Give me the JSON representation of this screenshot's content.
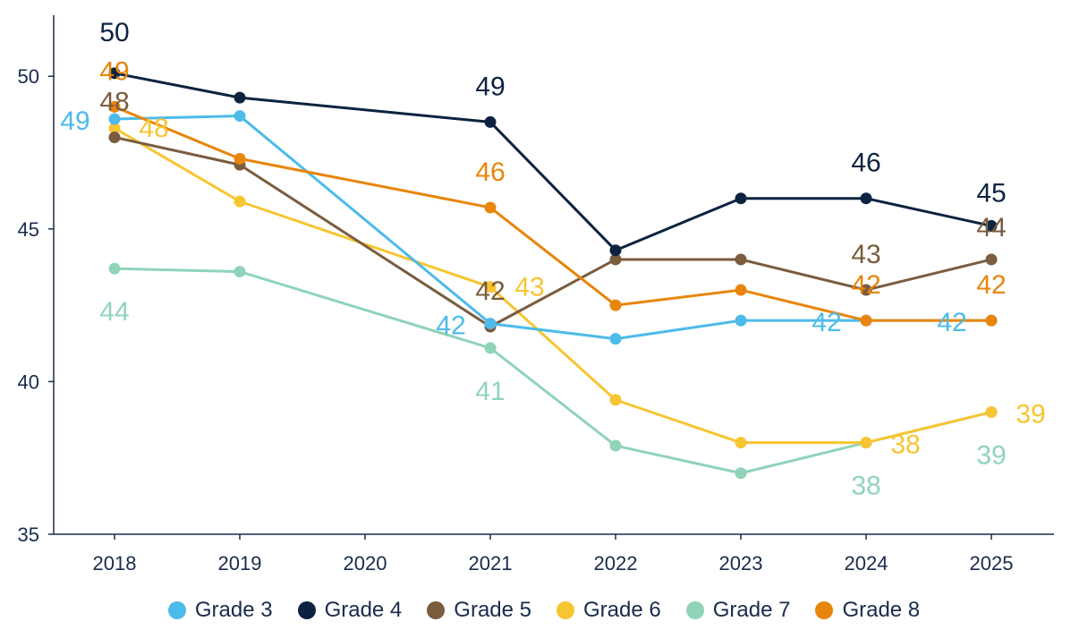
{
  "chart_data": {
    "type": "line",
    "title": "",
    "xlabel": "",
    "ylabel": "",
    "categories": [
      "2018",
      "2019",
      "2020",
      "2021",
      "2022",
      "2023",
      "2024",
      "2025"
    ],
    "ylim": [
      35,
      52
    ],
    "yticks": [
      35,
      40,
      45,
      50
    ],
    "series": [
      {
        "name": "Grade 3",
        "color": "#4dbbea",
        "values": [
          48.6,
          48.7,
          null,
          41.9,
          41.4,
          42,
          42,
          42
        ],
        "labels": [
          {
            "i": 0,
            "text": "49"
          },
          {
            "i": 3,
            "text": "42"
          },
          {
            "i": 6,
            "text": "42"
          },
          {
            "i": 7,
            "text": "42"
          }
        ]
      },
      {
        "name": "Grade 4",
        "color": "#0c2340",
        "values": [
          50.1,
          49.3,
          null,
          48.5,
          44.3,
          46,
          46,
          45.1
        ],
        "labels": [
          {
            "i": 0,
            "text": "50"
          },
          {
            "i": 3,
            "text": "49"
          },
          {
            "i": 6,
            "text": "46"
          },
          {
            "i": 7,
            "text": "45"
          }
        ]
      },
      {
        "name": "Grade 5",
        "color": "#7a5c3e",
        "values": [
          48,
          47.1,
          null,
          41.8,
          44,
          44,
          43,
          44
        ],
        "labels": [
          {
            "i": 0,
            "text": "48"
          },
          {
            "i": 3,
            "text": "42"
          },
          {
            "i": 6,
            "text": "43"
          },
          {
            "i": 7,
            "text": "44"
          }
        ]
      },
      {
        "name": "Grade 6",
        "color": "#f7c531",
        "values": [
          48.3,
          45.9,
          null,
          43.1,
          39.4,
          38,
          38,
          39
        ],
        "labels": [
          {
            "i": 0,
            "text": "48"
          },
          {
            "i": 3,
            "text": "43"
          },
          {
            "i": 6,
            "text": "38"
          },
          {
            "i": 7,
            "text": "39"
          }
        ]
      },
      {
        "name": "Grade 7",
        "color": "#8fd4b8",
        "values": [
          43.7,
          43.6,
          null,
          41.1,
          37.9,
          37,
          38,
          39
        ],
        "labels": [
          {
            "i": 0,
            "text": "44"
          },
          {
            "i": 3,
            "text": "41"
          },
          {
            "i": 6,
            "text": "38"
          },
          {
            "i": 7,
            "text": "39"
          }
        ]
      },
      {
        "name": "Grade 8",
        "color": "#e8850c",
        "values": [
          49,
          47.3,
          null,
          45.7,
          42.5,
          43,
          42,
          42
        ],
        "labels": [
          {
            "i": 0,
            "text": "49"
          },
          {
            "i": 3,
            "text": "46"
          },
          {
            "i": 6,
            "text": "42"
          },
          {
            "i": 7,
            "text": "42"
          }
        ]
      }
    ]
  }
}
